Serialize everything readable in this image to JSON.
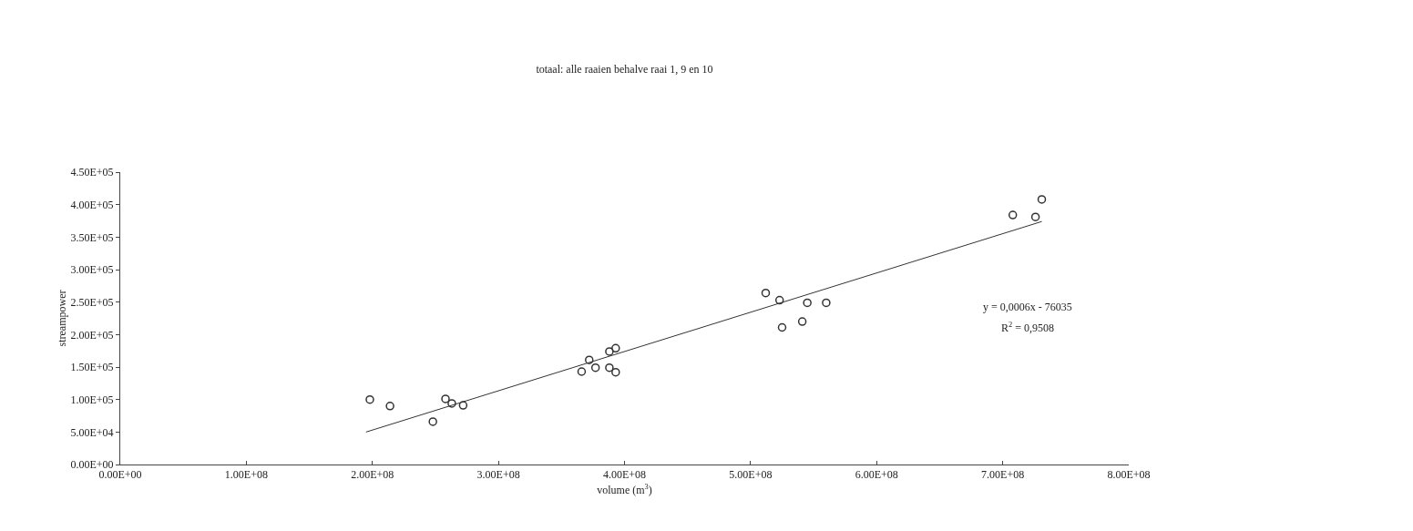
{
  "chart_data": {
    "type": "scatter",
    "title": "totaal: alle raaien behalve raai 1, 9 en 10",
    "xlabel": "volume (m$^{3}$)",
    "ylabel": "streampower",
    "annotations": [
      "y = 0,0006x - 76035",
      "R$^{2}$ = 0,9508"
    ],
    "series": [
      {
        "color": "#333333",
        "marker": "circle",
        "x": [
          198000000,
          214000000,
          248000000,
          258000000,
          263000000,
          272000000,
          366000000,
          372000000,
          377000000,
          388000000,
          393000000,
          388000000,
          393000000,
          512000000,
          523000000,
          545000000,
          560000000,
          525000000,
          541000000,
          708000000,
          726000000,
          731000000
        ],
        "values": [
          100000,
          90000,
          66000,
          101000,
          94000,
          91000,
          143000,
          161000,
          149000,
          174000,
          179000,
          149000,
          142000,
          264000,
          253000,
          249000,
          249000,
          211000,
          220000,
          384000,
          381000,
          408000
        ]
      },
      {
        "type": "line",
        "marker": "none",
        "color": "#333333",
        "x": [
          195000000,
          731000000
        ],
        "values": [
          50000,
          374000
        ]
      }
    ],
    "xlim": [
      0,
      800000000
    ],
    "ylim": [
      0,
      450000
    ],
    "xticks": [
      {
        "value": 0,
        "label": "0.00E+00"
      },
      {
        "value": 100000000,
        "label": "1.00E+08"
      },
      {
        "value": 200000000,
        "label": "2.00E+08"
      },
      {
        "value": 300000000,
        "label": "3.00E+08"
      },
      {
        "value": 400000000,
        "label": "4.00E+08"
      },
      {
        "value": 500000000,
        "label": "5.00E+08"
      },
      {
        "value": 600000000,
        "label": "6.00E+08"
      },
      {
        "value": 700000000,
        "label": "7.00E+08"
      },
      {
        "value": 800000000,
        "label": "8.00E+08"
      }
    ],
    "yticks": [
      {
        "value": 0,
        "label": "0.00E+00"
      },
      {
        "value": 50000,
        "label": "5.00E+04"
      },
      {
        "value": 100000,
        "label": "1.00E+05"
      },
      {
        "value": 150000,
        "label": "1.50E+05"
      },
      {
        "value": 200000,
        "label": "2.00E+05"
      },
      {
        "value": 250000,
        "label": "2.50E+05"
      },
      {
        "value": 300000,
        "label": "3.00E+05"
      },
      {
        "value": 350000,
        "label": "3.50E+05"
      },
      {
        "value": 400000,
        "label": "4.00E+05"
      },
      {
        "value": 450000,
        "label": "4.50E+05"
      }
    ]
  }
}
